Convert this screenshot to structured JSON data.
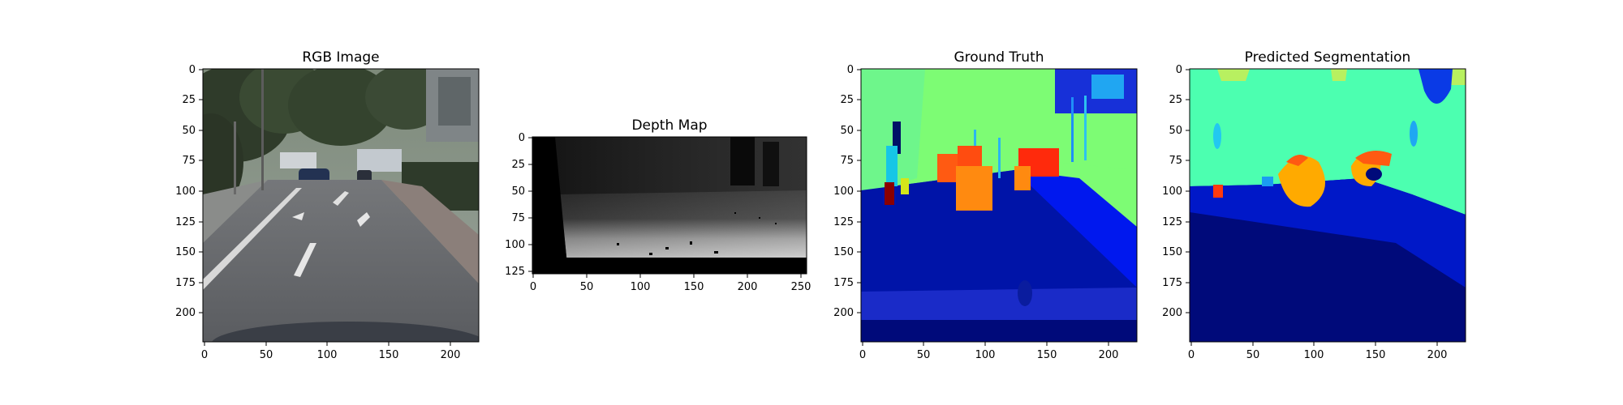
{
  "figure": {
    "panels": [
      {
        "title": "RGB Image",
        "xticks": [
          "0",
          "50",
          "100",
          "150",
          "200"
        ],
        "yticks": [
          "0",
          "25",
          "50",
          "75",
          "100",
          "125",
          "150",
          "175",
          "200"
        ]
      },
      {
        "title": "Depth Map",
        "xticks": [
          "0",
          "50",
          "100",
          "150",
          "200",
          "250"
        ],
        "yticks": [
          "0",
          "25",
          "50",
          "75",
          "100",
          "125"
        ]
      },
      {
        "title": "Ground Truth",
        "xticks": [
          "0",
          "50",
          "100",
          "150",
          "200"
        ],
        "yticks": [
          "0",
          "25",
          "50",
          "75",
          "100",
          "125",
          "150",
          "175",
          "200"
        ]
      },
      {
        "title": "Predicted Segmentation",
        "xticks": [
          "0",
          "50",
          "100",
          "150",
          "200"
        ],
        "yticks": [
          "0",
          "25",
          "50",
          "75",
          "100",
          "125",
          "150",
          "175",
          "200"
        ]
      }
    ]
  }
}
